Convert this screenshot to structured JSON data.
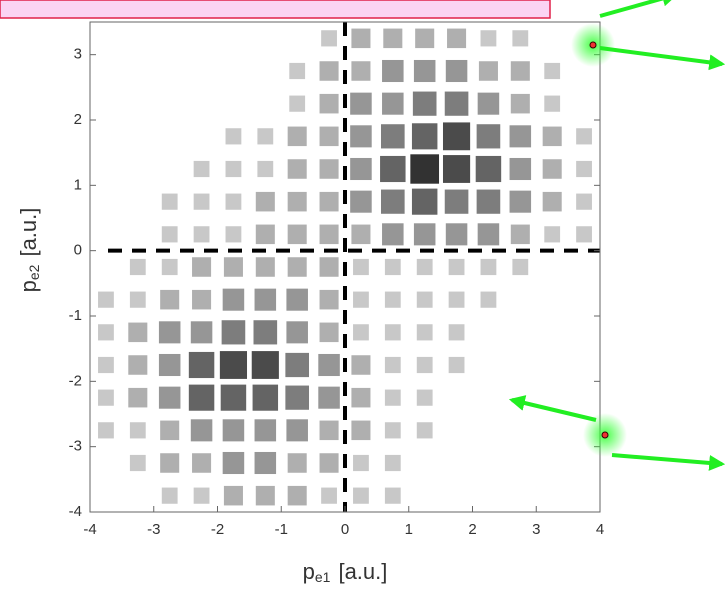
{
  "chart_data": {
    "type": "heatmap",
    "x_label": {
      "main": "p",
      "sub": "e1",
      "unit": "[a.u.]"
    },
    "y_label": {
      "main": "p",
      "sub": "e2",
      "unit": "[a.u.]"
    },
    "xlim": [
      -4,
      4
    ],
    "ylim": [
      -4,
      3.5
    ],
    "xticks": [
      -4,
      -3,
      -2,
      -1,
      0,
      1,
      2,
      3,
      4
    ],
    "yticks": [
      -4,
      -3,
      -2,
      -1,
      0,
      1,
      2,
      3
    ],
    "x_bins": [
      -4,
      -3.5,
      -3,
      -2.5,
      -2,
      -1.5,
      -1,
      -0.5,
      0,
      0.5,
      1,
      1.5,
      2,
      2.5,
      3,
      3.5,
      4
    ],
    "y_bins": [
      3.5,
      3,
      2.5,
      2,
      1.5,
      1,
      0.5,
      0,
      -0.5,
      -1,
      -1.5,
      -2,
      -2.5,
      -3,
      -3.5,
      -4
    ],
    "reference_lines": {
      "x": 0,
      "y": 0
    },
    "z": [
      [
        0,
        0,
        0,
        0,
        0,
        0,
        0,
        1,
        2,
        2,
        2,
        2,
        1,
        1,
        0,
        0
      ],
      [
        0,
        0,
        0,
        0,
        0,
        0,
        1,
        2,
        2,
        3,
        3,
        3,
        2,
        2,
        1,
        0
      ],
      [
        0,
        0,
        0,
        0,
        0,
        0,
        1,
        2,
        3,
        3,
        4,
        4,
        3,
        2,
        1,
        0
      ],
      [
        0,
        0,
        0,
        0,
        1,
        1,
        2,
        2,
        3,
        4,
        5,
        6,
        4,
        3,
        2,
        1
      ],
      [
        0,
        0,
        0,
        1,
        1,
        1,
        2,
        2,
        3,
        5,
        7,
        6,
        5,
        3,
        2,
        1
      ],
      [
        0,
        0,
        1,
        1,
        1,
        2,
        2,
        2,
        3,
        4,
        5,
        4,
        4,
        3,
        2,
        1
      ],
      [
        0,
        0,
        1,
        1,
        1,
        2,
        2,
        2,
        2,
        3,
        3,
        3,
        3,
        2,
        1,
        1
      ],
      [
        0,
        1,
        1,
        2,
        2,
        2,
        2,
        2,
        1,
        1,
        1,
        1,
        1,
        1,
        0,
        0
      ],
      [
        1,
        1,
        2,
        2,
        3,
        3,
        3,
        2,
        1,
        1,
        1,
        1,
        1,
        0,
        0,
        0
      ],
      [
        1,
        2,
        3,
        3,
        4,
        4,
        3,
        2,
        1,
        1,
        1,
        1,
        0,
        0,
        0,
        0
      ],
      [
        1,
        2,
        3,
        5,
        6,
        6,
        4,
        3,
        2,
        1,
        1,
        1,
        0,
        0,
        0,
        0
      ],
      [
        1,
        2,
        3,
        5,
        5,
        5,
        4,
        3,
        2,
        1,
        1,
        0,
        0,
        0,
        0,
        0
      ],
      [
        1,
        1,
        2,
        3,
        3,
        3,
        3,
        2,
        2,
        1,
        1,
        0,
        0,
        0,
        0,
        0
      ],
      [
        0,
        1,
        2,
        2,
        3,
        3,
        2,
        2,
        1,
        1,
        0,
        0,
        0,
        0,
        0,
        0
      ],
      [
        0,
        0,
        1,
        1,
        2,
        2,
        2,
        1,
        1,
        1,
        0,
        0,
        0,
        0,
        0,
        0
      ]
    ]
  }
}
